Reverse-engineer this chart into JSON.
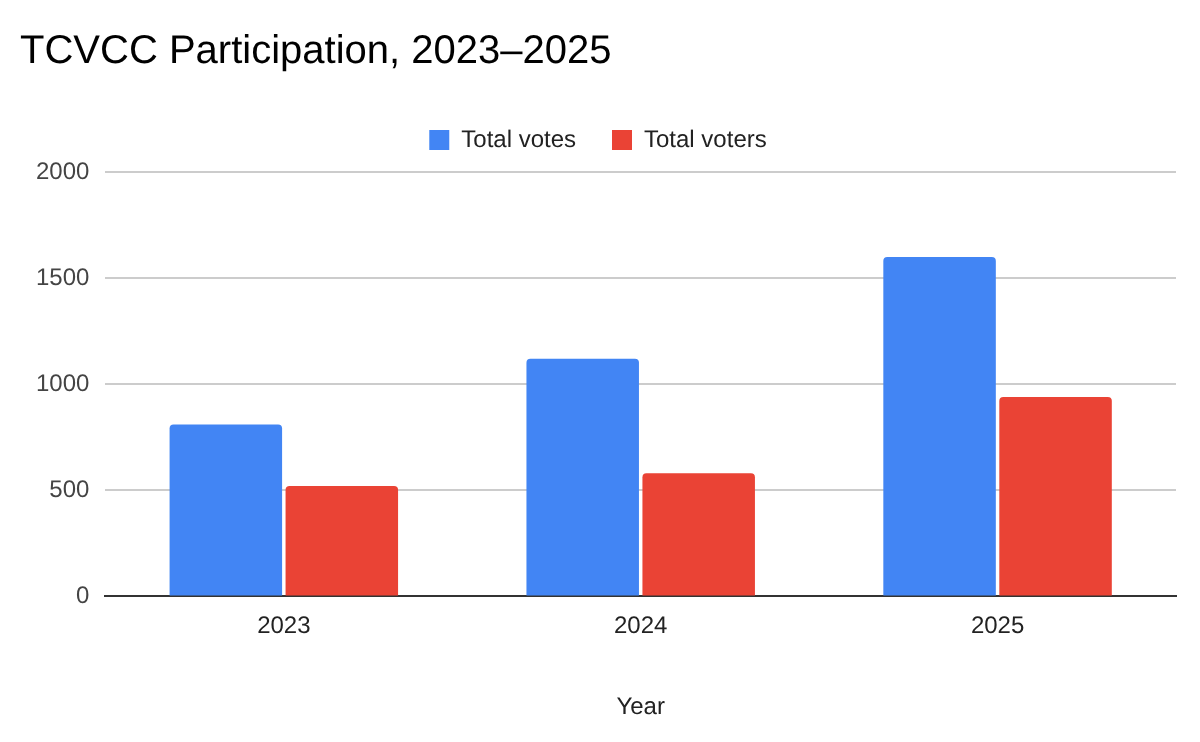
{
  "chart_data": {
    "type": "bar",
    "title": "TCVCC Participation, 2023–2025",
    "xlabel": "Year",
    "categories": [
      "2023",
      "2024",
      "2025"
    ],
    "series": [
      {
        "name": "Total votes",
        "color": "#4285f4",
        "values": [
          810,
          1120,
          1600
        ]
      },
      {
        "name": "Total voters",
        "color": "#ea4335",
        "values": [
          520,
          580,
          940
        ]
      }
    ],
    "ylim": [
      0,
      2000
    ],
    "yticks": [
      0,
      500,
      1000,
      1500,
      2000
    ],
    "grid": "y",
    "legend": "top"
  }
}
